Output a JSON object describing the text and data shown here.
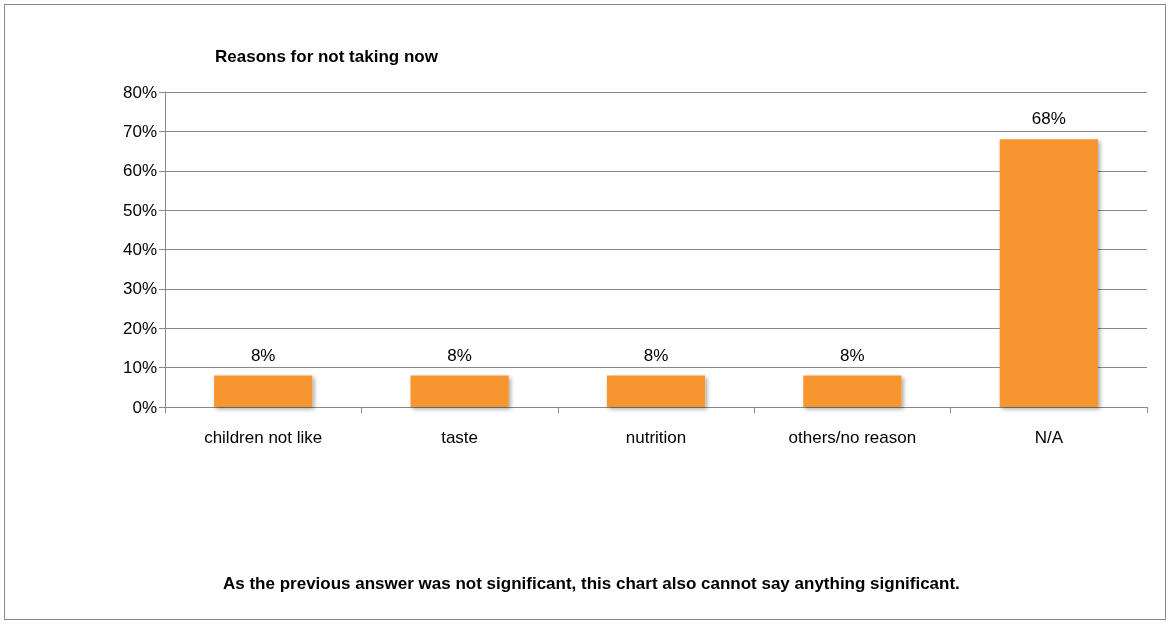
{
  "chart_data": {
    "type": "bar",
    "title": "Reasons for not taking now",
    "categories": [
      "children not like",
      "taste",
      "nutrition",
      "others/no reason",
      "N/A"
    ],
    "values": [
      8,
      8,
      8,
      8,
      68
    ],
    "value_labels": [
      "8%",
      "8%",
      "8%",
      "8%",
      "68%"
    ],
    "color": "#f7962f",
    "ylim": [
      0,
      80
    ],
    "yticks": [
      {
        "value": 0,
        "label": "0%"
      },
      {
        "value": 10,
        "label": "10%"
      },
      {
        "value": 20,
        "label": "20%"
      },
      {
        "value": 30,
        "label": "30%"
      },
      {
        "value": 40,
        "label": "40%"
      },
      {
        "value": 50,
        "label": "50%"
      },
      {
        "value": 60,
        "label": "60%"
      },
      {
        "value": 70,
        "label": "70%"
      },
      {
        "value": 80,
        "label": "80%"
      }
    ],
    "grid": "y",
    "annotations": [
      "As the previous answer was not significant, this chart also cannot say anything significant."
    ]
  }
}
